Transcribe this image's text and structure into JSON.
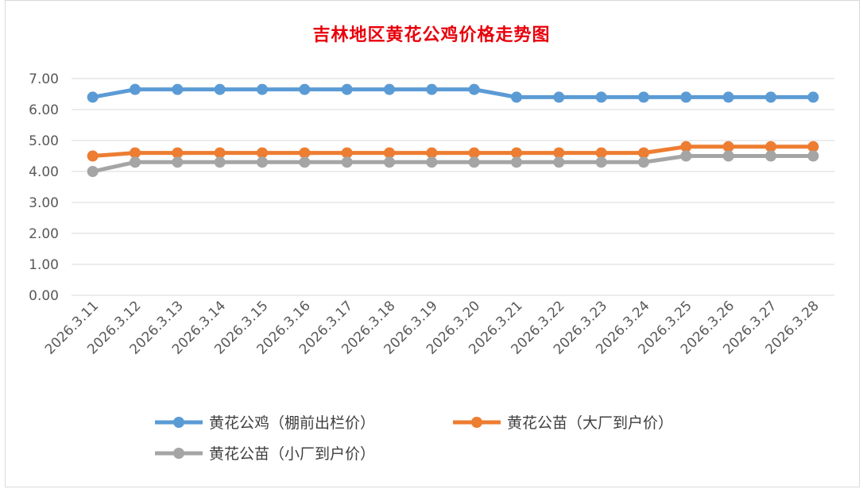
{
  "chart_data": {
    "type": "line",
    "title": "吉林地区黄花公鸡价格走势图",
    "categories": [
      "2026.3.11",
      "2026.3.12",
      "2026.3.13",
      "2026.3.14",
      "2026.3.15",
      "2026.3.16",
      "2026.3.17",
      "2026.3.18",
      "2026.3.19",
      "2026.3.20",
      "2026.3.21",
      "2026.3.22",
      "2026.3.23",
      "2026.3.24",
      "2026.3.25",
      "2026.3.26",
      "2026.3.27",
      "2026.3.28"
    ],
    "y_ticks": [
      "0.00",
      "1.00",
      "2.00",
      "3.00",
      "4.00",
      "5.00",
      "6.00",
      "7.00"
    ],
    "ylim": [
      0,
      7
    ],
    "grid": true,
    "legend_position": "bottom",
    "series": [
      {
        "name": "黄花公鸡（棚前出栏价）",
        "color": "#5b9bd5",
        "values": [
          6.4,
          6.65,
          6.65,
          6.65,
          6.65,
          6.65,
          6.65,
          6.65,
          6.65,
          6.65,
          6.4,
          6.4,
          6.4,
          6.4,
          6.4,
          6.4,
          6.4,
          6.4
        ]
      },
      {
        "name": "黄花公苗（大厂到户价）",
        "color": "#ed7d31",
        "values": [
          4.5,
          4.6,
          4.6,
          4.6,
          4.6,
          4.6,
          4.6,
          4.6,
          4.6,
          4.6,
          4.6,
          4.6,
          4.6,
          4.6,
          4.8,
          4.8,
          4.8,
          4.8
        ]
      },
      {
        "name": "黄花公苗（小厂到户价）",
        "color": "#a5a5a5",
        "values": [
          4.0,
          4.3,
          4.3,
          4.3,
          4.3,
          4.3,
          4.3,
          4.3,
          4.3,
          4.3,
          4.3,
          4.3,
          4.3,
          4.3,
          4.5,
          4.5,
          4.5,
          4.5
        ]
      }
    ]
  }
}
